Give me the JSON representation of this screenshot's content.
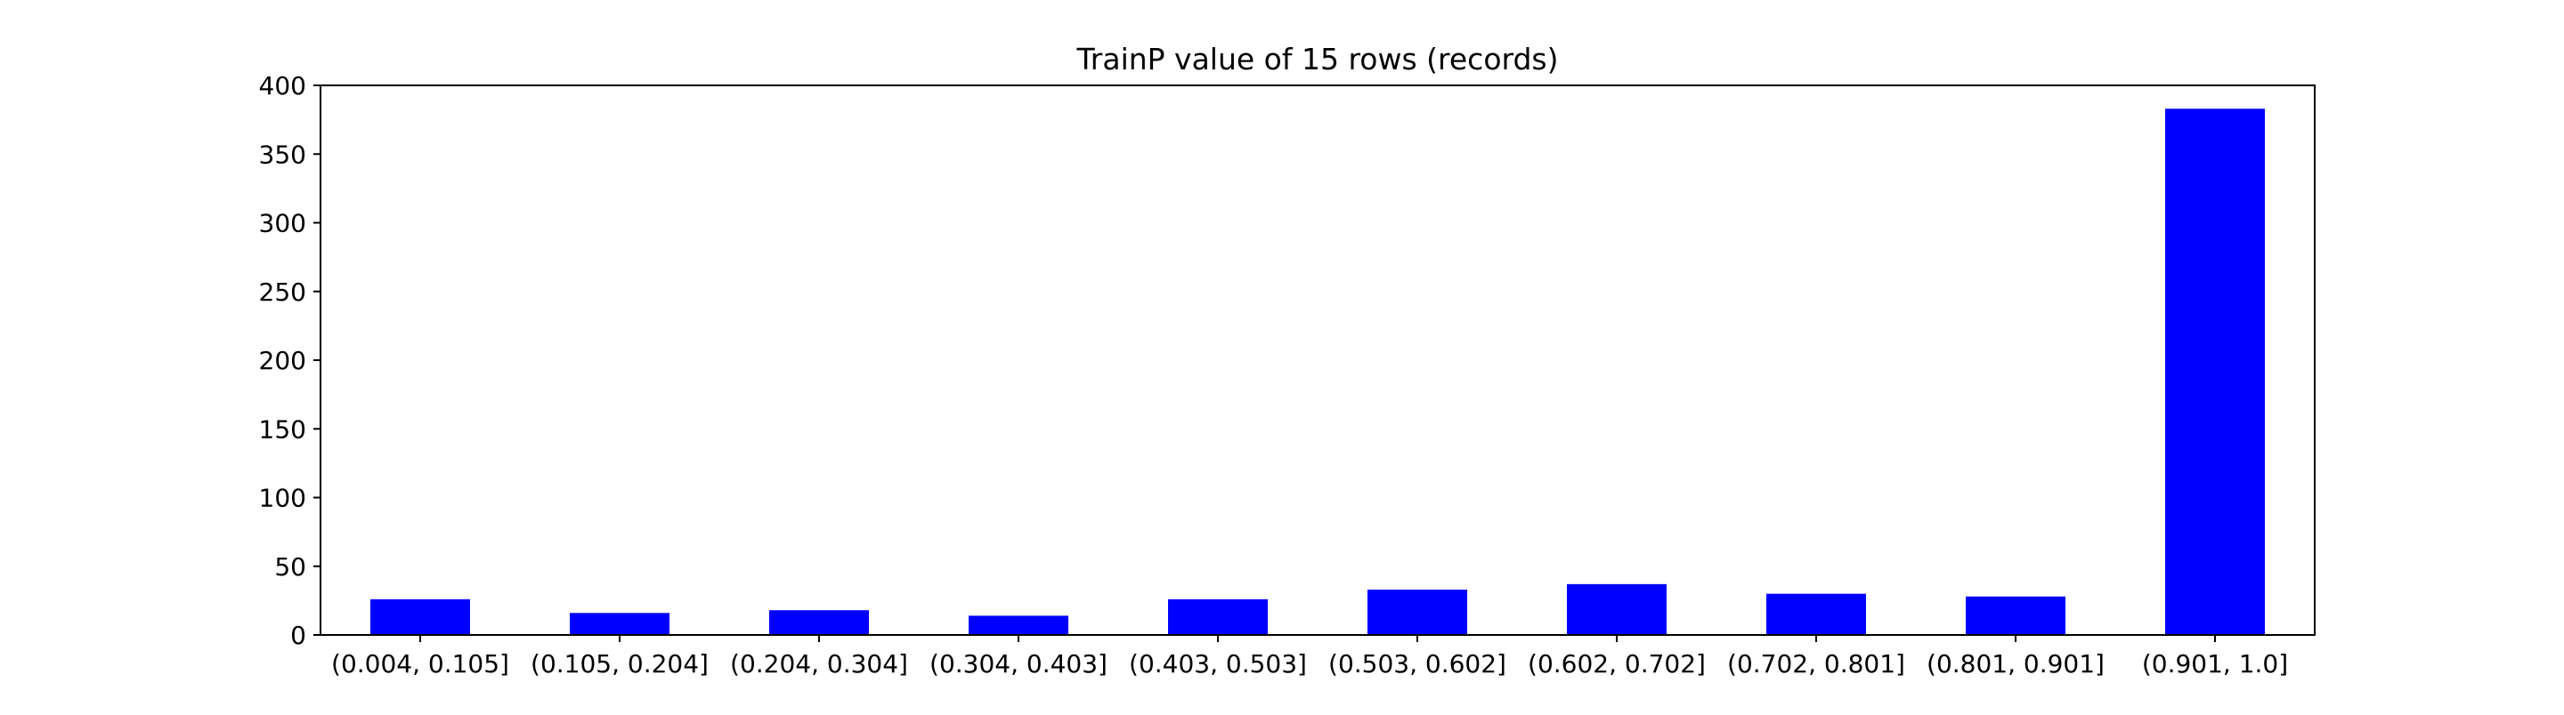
{
  "chart_data": {
    "type": "bar",
    "title": "TrainP value of 15 rows (records)",
    "xlabel": "",
    "ylabel": "",
    "categories": [
      "(0.004, 0.105]",
      "(0.105, 0.204]",
      "(0.204, 0.304]",
      "(0.304, 0.403]",
      "(0.403, 0.503]",
      "(0.503, 0.602]",
      "(0.602, 0.702]",
      "(0.702, 0.801]",
      "(0.801, 0.901]",
      "(0.901, 1.0]"
    ],
    "values": [
      26,
      16,
      18,
      14,
      26,
      33,
      37,
      30,
      28,
      383
    ],
    "ylim": [
      0,
      400
    ],
    "yticks": [
      0,
      50,
      100,
      150,
      200,
      250,
      300,
      350,
      400
    ],
    "bar_color": "#0000ff",
    "grid": false,
    "legend": "none"
  }
}
